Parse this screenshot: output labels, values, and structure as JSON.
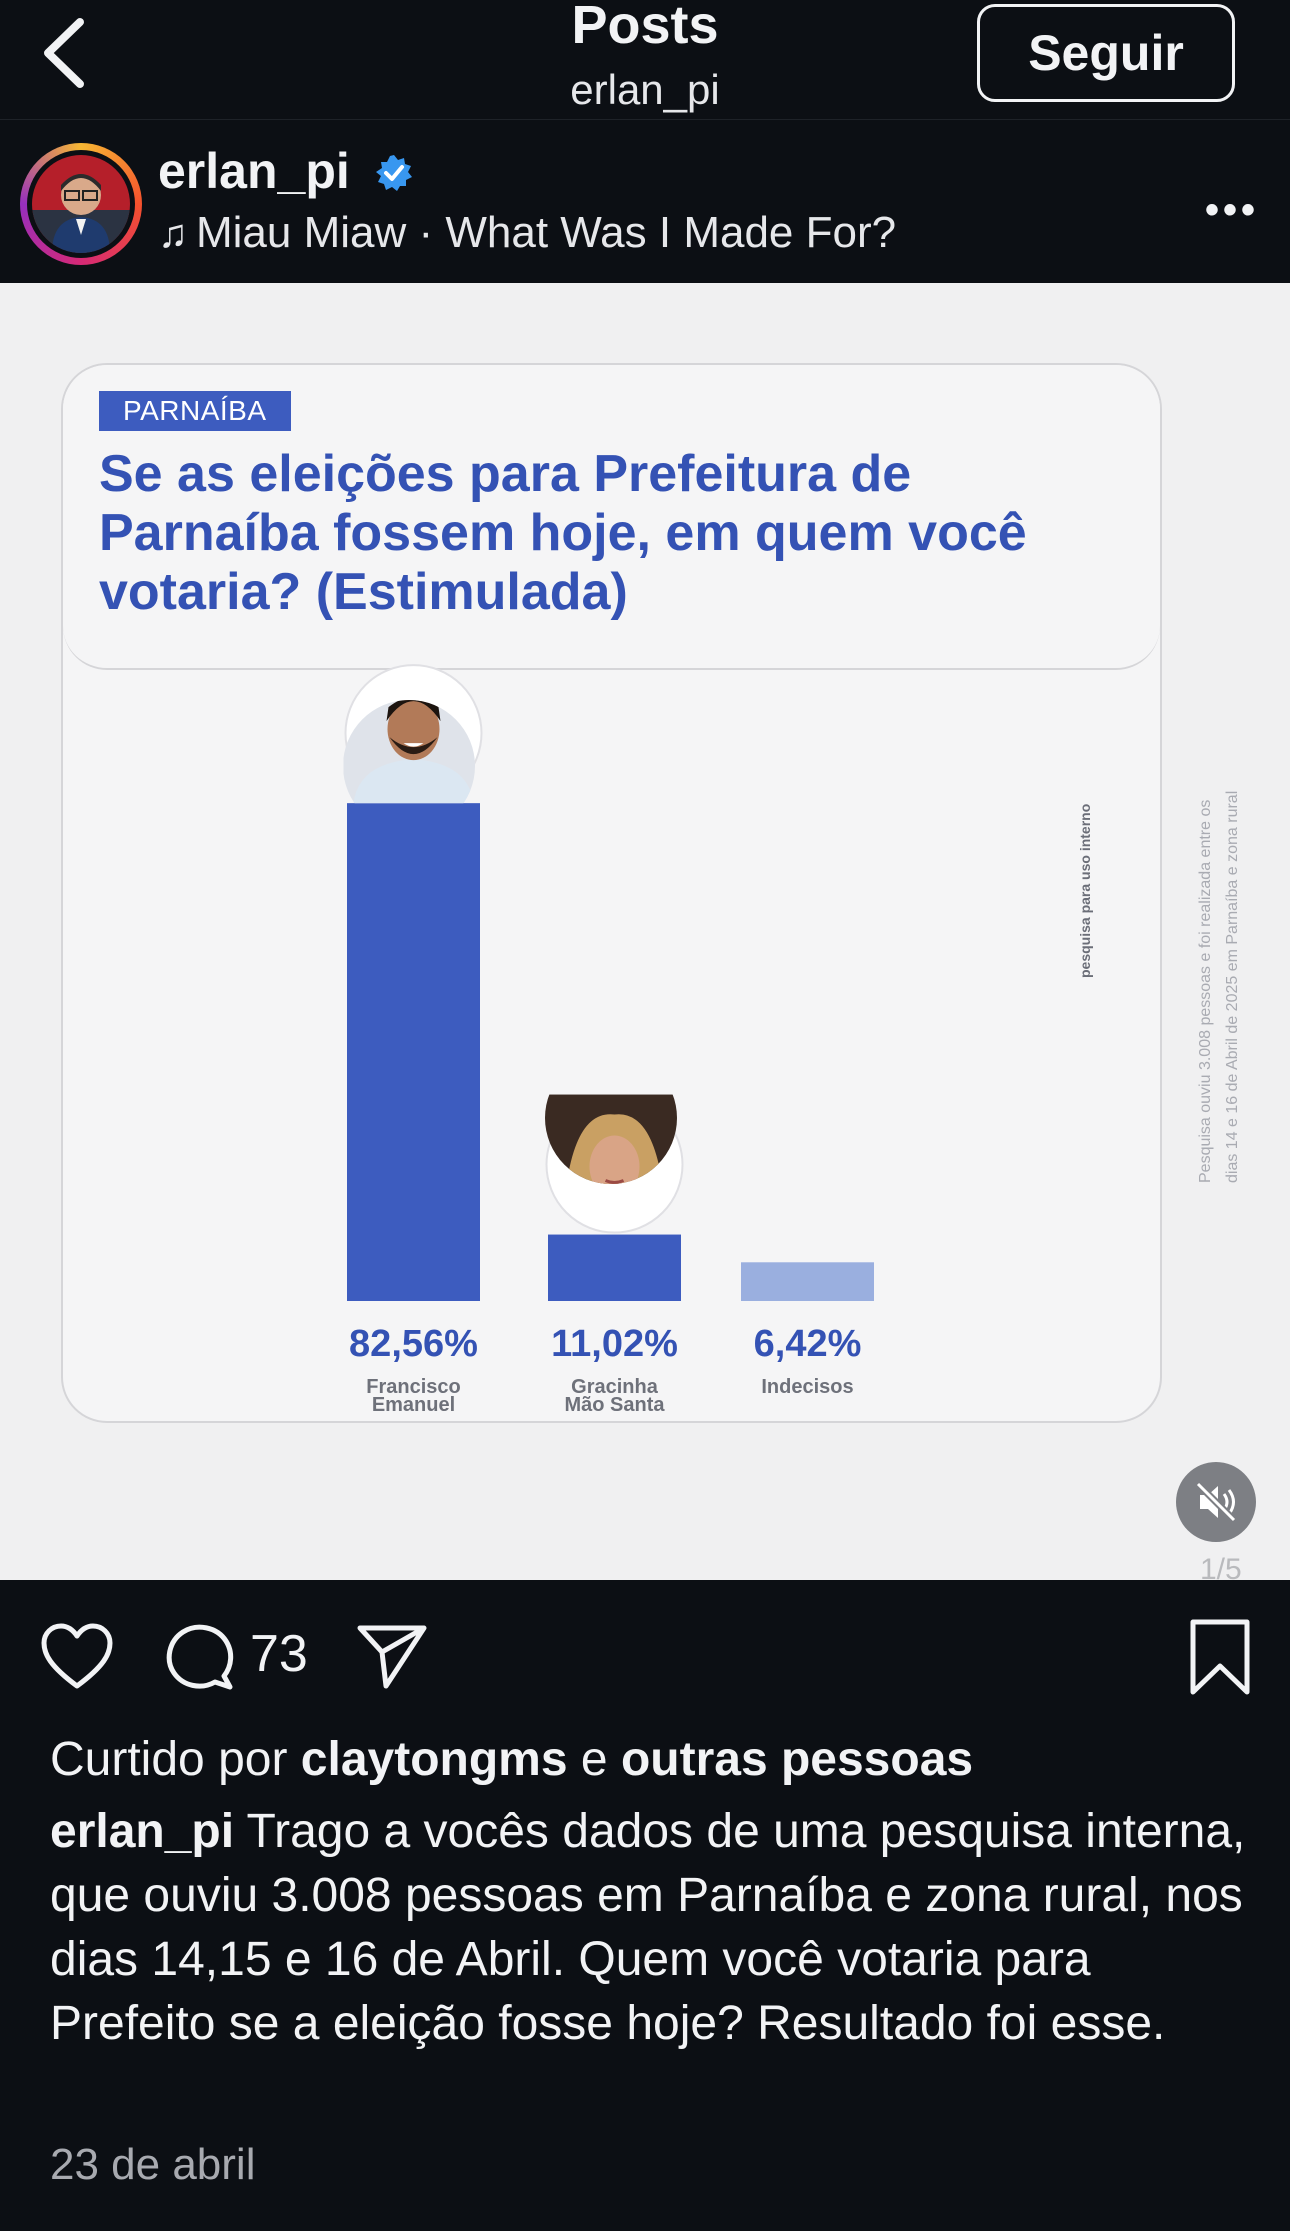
{
  "header": {
    "back_icon": "chevron-left-icon",
    "title": "Posts",
    "subtitle": "erlan_pi",
    "follow_label": "Seguir"
  },
  "post": {
    "username": "erlan_pi",
    "verified_icon": "verified-badge-icon",
    "audio_icon": "music-note-icon",
    "audio": "Miau Miaw · What Was I Made For?",
    "more_icon": "more-horizontal-icon"
  },
  "media": {
    "tag": "PARNAÍBA",
    "question": "Se as eleições para Prefeitura de Parnaíba fossem hoje, em quem você votaria? (Estimulada)",
    "side_note_internal": "pesquisa para uso interno",
    "side_note_line1": "Pesquisa ouviu 3.008 pessoas e foi realizada entre os",
    "side_note_line2": "dias 14 e 16 de Abril de 2025 em Parnaíba e zona rural",
    "mute_icon": "muted-speaker-icon",
    "counter": "1/5"
  },
  "chart_data": {
    "type": "bar",
    "title": "Se as eleições para Prefeitura de Parnaíba fossem hoje, em quem você votaria? (Estimulada)",
    "categories": [
      "Francisco Emanuel",
      "Gracinha Mão Santa",
      "Indecisos"
    ],
    "category_lines": [
      [
        "Francisco",
        "Emanuel"
      ],
      [
        "Gracinha",
        "Mão Santa"
      ],
      [
        "Indecisos"
      ]
    ],
    "values": [
      82.56,
      11.02,
      6.42
    ],
    "value_labels": [
      "82,56%",
      "11,02%",
      "6,42%"
    ],
    "colors": [
      "#3d5cbf",
      "#3d5cbf",
      "#9aafdf"
    ],
    "photos": [
      true,
      true,
      false
    ],
    "ylim": [
      0,
      100
    ],
    "grid": false,
    "legend": "none"
  },
  "actions": {
    "like_icon": "heart-icon",
    "comment_icon": "comment-icon",
    "comment_count": "73",
    "share_icon": "send-icon",
    "save_icon": "bookmark-icon"
  },
  "likes": {
    "prefix": "Curtido por",
    "user": "claytongms",
    "joiner": "e",
    "others": "outras pessoas"
  },
  "caption": {
    "username": "erlan_pi",
    "text": "Trago a vocês dados de uma pesquisa interna, que ouviu 3.008 pessoas em Parnaíba e zona rural, nos dias 14,15 e 16 de Abril. Quem você votaria para Prefeito se a eleição fosse hoje? Resultado foi esse."
  },
  "date": "23 de abril"
}
